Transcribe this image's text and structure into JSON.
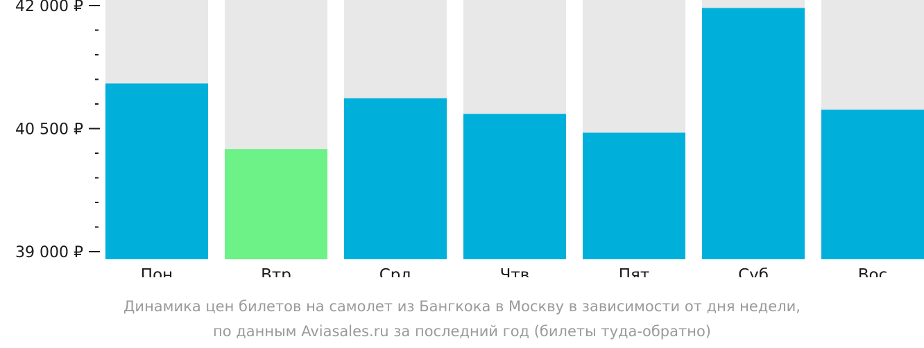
{
  "chart_data": {
    "type": "bar",
    "categories": [
      "Пон",
      "Втр",
      "Срд",
      "Чтв",
      "Пят",
      "Суб",
      "Вос"
    ],
    "values": [
      41050,
      40250,
      40870,
      40680,
      40450,
      41970,
      40730
    ],
    "ylim": [
      39000,
      42000
    ],
    "yticks": [
      {
        "value": 42000,
        "label": "42 000 ₽"
      },
      {
        "value": 40500,
        "label": "40 500 ₽"
      },
      {
        "value": 39000,
        "label": "39 000 ₽"
      }
    ],
    "minor_tick_step": 300,
    "highlight_index": 1,
    "colors": {
      "bar": "#00b0db",
      "highlight": "#6cf287",
      "background": "#e8e8e8",
      "axis": "#1a1a1a"
    },
    "grid": false,
    "legend": "none"
  },
  "caption": {
    "line1": "Динамика цен билетов на самолет из Бангкока в Москву в зависимости от дня недели,",
    "line2": "по данным Aviasales.ru за последний год (билеты туда-обратно)"
  }
}
